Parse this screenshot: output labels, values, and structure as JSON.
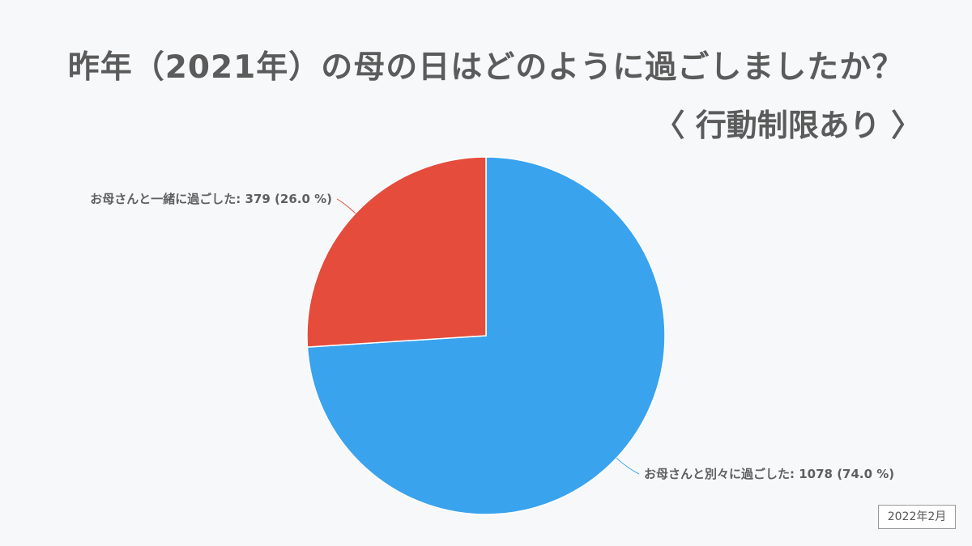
{
  "header": {
    "title": "昨年（2021年）の母の日はどのように過ごしましたか？",
    "subtitle": "〈 行動制限あり 〉"
  },
  "chart_data": {
    "type": "pie",
    "title": "昨年（2021年）の母の日はどのように過ごしましたか？",
    "subtitle": "〈 行動制限あり 〉",
    "slices": [
      {
        "name": "お母さんと別々に過ごした",
        "value": 1078,
        "percent": 74.0,
        "color": "#3aa3ee",
        "label": "お母さんと別々に過ごした: 1078 (74.0 %)"
      },
      {
        "name": "お母さんと一緒に過ごした",
        "value": 379,
        "percent": 26.0,
        "color": "#e54c3c",
        "label": "お母さんと一緒に過ごした: 379 (26.0 %)"
      }
    ],
    "start": "top",
    "direction": "clockwise"
  },
  "footer": {
    "date": "2022年2月"
  }
}
